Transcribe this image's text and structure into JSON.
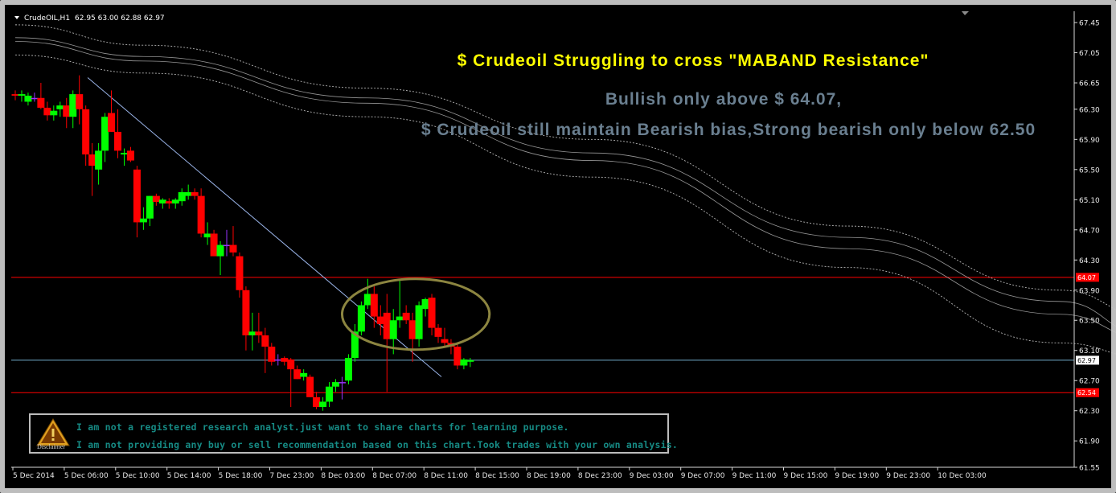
{
  "header": {
    "symbol_label": "CrudeOIL,H1",
    "ohlc_label": "62.95 63.00 62.88 62.97"
  },
  "annotations": {
    "title": "$ Crudeoil Struggling to cross \"MABAND Resistance\"",
    "line2": "Bullish only above $ 64.07,",
    "line3": "$ Crudeoil still maintain Bearish bias,Strong bearish only below 62.50"
  },
  "disclaimer": {
    "icon_label": "Disclaimer",
    "line1": "I am not a registered research analyst.just want to share charts for learning purpose.",
    "line2": "I am not providing any buy or sell recommendation based on this chart.Took trades with your own analysis."
  },
  "colors": {
    "bull": "#00ff00",
    "bear": "#ff0000",
    "doji": "#9933ff",
    "level": "#ff0000",
    "current": "#6fa8c8",
    "trendline": "#9ab4e8",
    "band": "#c8c8c8",
    "ellipse": "#8c8540"
  },
  "chart_data": {
    "type": "candlestick",
    "symbol": "CrudeOIL",
    "timeframe": "H1",
    "ylim": [
      61.55,
      67.6
    ],
    "y_ticks": [
      67.45,
      67.05,
      66.65,
      66.3,
      65.9,
      65.5,
      65.1,
      64.7,
      64.3,
      63.9,
      63.5,
      63.1,
      62.7,
      62.3,
      61.9,
      61.55
    ],
    "x_tick_labels": [
      "5 Dec 2014",
      "5 Dec 06:00",
      "5 Dec 10:00",
      "5 Dec 14:00",
      "5 Dec 18:00",
      "7 Dec 23:00",
      "8 Dec 03:00",
      "8 Dec 07:00",
      "8 Dec 11:00",
      "8 Dec 15:00",
      "8 Dec 19:00",
      "8 Dec 23:00",
      "9 Dec 03:00",
      "9 Dec 07:00",
      "9 Dec 11:00",
      "9 Dec 15:00",
      "9 Dec 19:00",
      "9 Dec 23:00",
      "10 Dec 03:00"
    ],
    "price_badges": [
      {
        "label": "64.07",
        "value": 64.07,
        "style": "level"
      },
      {
        "label": "62.97",
        "value": 62.97,
        "style": "current"
      },
      {
        "label": "62.54",
        "value": 62.54,
        "style": "level"
      }
    ],
    "horizontal_lines": [
      {
        "value": 64.07,
        "style": "level"
      },
      {
        "value": 62.97,
        "style": "current"
      },
      {
        "value": 62.54,
        "style": "level"
      }
    ],
    "candles": [
      {
        "o": 66.5,
        "h": 66.55,
        "l": 66.42,
        "c": 66.48
      },
      {
        "o": 66.48,
        "h": 66.55,
        "l": 66.4,
        "c": 66.5
      },
      {
        "o": 66.4,
        "h": 66.52,
        "l": 66.35,
        "c": 66.48
      },
      {
        "o": 66.45,
        "h": 66.52,
        "l": 66.4,
        "c": 66.45
      },
      {
        "o": 66.45,
        "h": 66.65,
        "l": 66.3,
        "c": 66.32
      },
      {
        "o": 66.32,
        "h": 66.4,
        "l": 66.15,
        "c": 66.22
      },
      {
        "o": 66.22,
        "h": 66.35,
        "l": 66.15,
        "c": 66.28
      },
      {
        "o": 66.3,
        "h": 66.4,
        "l": 66.2,
        "c": 66.35
      },
      {
        "o": 66.35,
        "h": 66.45,
        "l": 66.05,
        "c": 66.2
      },
      {
        "o": 66.2,
        "h": 66.55,
        "l": 66.05,
        "c": 66.5
      },
      {
        "o": 66.5,
        "h": 66.75,
        "l": 66.1,
        "c": 66.3
      },
      {
        "o": 66.3,
        "h": 66.35,
        "l": 65.55,
        "c": 65.7
      },
      {
        "o": 65.7,
        "h": 65.85,
        "l": 65.15,
        "c": 65.55
      },
      {
        "o": 65.5,
        "h": 65.85,
        "l": 65.3,
        "c": 65.75
      },
      {
        "o": 65.75,
        "h": 66.25,
        "l": 65.6,
        "c": 66.2
      },
      {
        "o": 66.25,
        "h": 66.55,
        "l": 66.0,
        "c": 66.0
      },
      {
        "o": 66.0,
        "h": 66.3,
        "l": 65.65,
        "c": 65.75
      },
      {
        "o": 65.7,
        "h": 65.78,
        "l": 65.55,
        "c": 65.72
      },
      {
        "o": 65.75,
        "h": 65.8,
        "l": 65.6,
        "c": 65.62
      },
      {
        "o": 65.5,
        "h": 65.55,
        "l": 64.6,
        "c": 64.8
      },
      {
        "o": 64.8,
        "h": 65.0,
        "l": 64.7,
        "c": 64.85
      },
      {
        "o": 64.85,
        "h": 65.15,
        "l": 64.75,
        "c": 65.15
      },
      {
        "o": 65.15,
        "h": 65.18,
        "l": 65.02,
        "c": 65.07
      },
      {
        "o": 65.05,
        "h": 65.12,
        "l": 64.98,
        "c": 65.1
      },
      {
        "o": 65.08,
        "h": 65.12,
        "l": 64.98,
        "c": 65.05
      },
      {
        "o": 65.05,
        "h": 65.12,
        "l": 64.98,
        "c": 65.1
      },
      {
        "o": 65.08,
        "h": 65.25,
        "l": 65.02,
        "c": 65.2
      },
      {
        "o": 65.15,
        "h": 65.3,
        "l": 65.1,
        "c": 65.2
      },
      {
        "o": 65.2,
        "h": 65.25,
        "l": 65.1,
        "c": 65.15
      },
      {
        "o": 65.15,
        "h": 65.25,
        "l": 64.6,
        "c": 64.65
      },
      {
        "o": 64.6,
        "h": 64.8,
        "l": 64.5,
        "c": 64.65
      },
      {
        "o": 64.65,
        "h": 64.7,
        "l": 64.35,
        "c": 64.35
      },
      {
        "o": 64.35,
        "h": 64.55,
        "l": 64.1,
        "c": 64.5
      },
      {
        "o": 64.5,
        "h": 64.7,
        "l": 64.35,
        "c": 64.5
      },
      {
        "o": 64.5,
        "h": 64.75,
        "l": 64.35,
        "c": 64.4
      },
      {
        "o": 64.35,
        "h": 64.4,
        "l": 63.8,
        "c": 63.9
      },
      {
        "o": 63.9,
        "h": 63.95,
        "l": 63.1,
        "c": 63.3
      },
      {
        "o": 63.3,
        "h": 63.6,
        "l": 63.1,
        "c": 63.35
      },
      {
        "o": 63.35,
        "h": 63.6,
        "l": 63.2,
        "c": 63.3
      },
      {
        "o": 63.3,
        "h": 63.4,
        "l": 62.8,
        "c": 63.15
      },
      {
        "o": 63.15,
        "h": 63.2,
        "l": 62.9,
        "c": 62.95
      },
      {
        "o": 62.98,
        "h": 63.05,
        "l": 62.9,
        "c": 62.98
      },
      {
        "o": 63.0,
        "h": 63.02,
        "l": 62.9,
        "c": 62.95
      },
      {
        "o": 62.98,
        "h": 63.0,
        "l": 62.35,
        "c": 62.85
      },
      {
        "o": 62.85,
        "h": 62.9,
        "l": 62.72,
        "c": 62.72
      },
      {
        "o": 62.75,
        "h": 62.85,
        "l": 62.7,
        "c": 62.8
      },
      {
        "o": 62.75,
        "h": 62.78,
        "l": 62.48,
        "c": 62.48
      },
      {
        "o": 62.48,
        "h": 62.55,
        "l": 62.32,
        "c": 62.35
      },
      {
        "o": 62.35,
        "h": 62.48,
        "l": 62.3,
        "c": 62.42
      },
      {
        "o": 62.42,
        "h": 62.68,
        "l": 62.35,
        "c": 62.62
      },
      {
        "o": 62.62,
        "h": 62.72,
        "l": 62.55,
        "c": 62.68
      },
      {
        "o": 62.68,
        "h": 62.75,
        "l": 62.45,
        "c": 62.68
      },
      {
        "o": 62.7,
        "h": 63.05,
        "l": 62.65,
        "c": 63.0
      },
      {
        "o": 63.0,
        "h": 63.45,
        "l": 62.95,
        "c": 63.35
      },
      {
        "o": 63.35,
        "h": 63.75,
        "l": 63.3,
        "c": 63.7
      },
      {
        "o": 63.7,
        "h": 64.05,
        "l": 63.65,
        "c": 63.85
      },
      {
        "o": 63.85,
        "h": 63.95,
        "l": 63.4,
        "c": 63.55
      },
      {
        "o": 63.55,
        "h": 63.7,
        "l": 63.3,
        "c": 63.45
      },
      {
        "o": 63.6,
        "h": 63.85,
        "l": 62.55,
        "c": 63.25
      },
      {
        "o": 63.25,
        "h": 63.65,
        "l": 63.05,
        "c": 63.5
      },
      {
        "o": 63.5,
        "h": 64.05,
        "l": 63.4,
        "c": 63.55
      },
      {
        "o": 63.6,
        "h": 63.7,
        "l": 63.45,
        "c": 63.5
      },
      {
        "o": 63.5,
        "h": 63.6,
        "l": 62.95,
        "c": 63.25
      },
      {
        "o": 63.25,
        "h": 63.75,
        "l": 63.15,
        "c": 63.7
      },
      {
        "o": 63.65,
        "h": 63.8,
        "l": 63.55,
        "c": 63.78
      },
      {
        "o": 63.8,
        "h": 63.85,
        "l": 63.3,
        "c": 63.4
      },
      {
        "o": 63.4,
        "h": 63.45,
        "l": 63.2,
        "c": 63.28
      },
      {
        "o": 63.25,
        "h": 63.4,
        "l": 63.15,
        "c": 63.2
      },
      {
        "o": 63.2,
        "h": 63.25,
        "l": 63.05,
        "c": 63.15
      },
      {
        "o": 63.15,
        "h": 63.18,
        "l": 62.85,
        "c": 62.9
      },
      {
        "o": 62.9,
        "h": 63.0,
        "l": 62.85,
        "c": 62.98
      },
      {
        "o": 62.95,
        "h": 63.0,
        "l": 62.88,
        "c": 62.97
      }
    ],
    "band_upper_outer": [
      [
        0,
        67.42
      ],
      [
        20,
        67.15
      ],
      [
        55,
        66.58
      ],
      [
        90,
        65.9
      ],
      [
        130,
        64.75
      ],
      [
        163,
        63.9
      ],
      [
        177,
        63.55
      ]
    ],
    "band_upper": [
      [
        0,
        67.25
      ],
      [
        20,
        67.0
      ],
      [
        55,
        66.45
      ],
      [
        90,
        65.72
      ],
      [
        130,
        64.6
      ],
      [
        163,
        63.75
      ],
      [
        177,
        63.3
      ]
    ],
    "band_lower": [
      [
        0,
        67.2
      ],
      [
        20,
        66.94
      ],
      [
        55,
        66.38
      ],
      [
        90,
        65.62
      ],
      [
        130,
        64.45
      ],
      [
        163,
        63.58
      ],
      [
        177,
        63.25
      ]
    ],
    "band_lower_outer": [
      [
        0,
        67.02
      ],
      [
        20,
        66.78
      ],
      [
        55,
        66.2
      ],
      [
        90,
        65.4
      ],
      [
        130,
        64.2
      ],
      [
        163,
        63.2
      ],
      [
        177,
        63.0
      ]
    ],
    "trendline": [
      [
        11.3,
        66.72
      ],
      [
        66.5,
        62.75
      ]
    ],
    "ellipse": {
      "center_bar": 62.5,
      "center_price": 63.58,
      "rx_bars": 11.5,
      "ry_price": 0.47
    },
    "grid": false,
    "legend": "none"
  }
}
